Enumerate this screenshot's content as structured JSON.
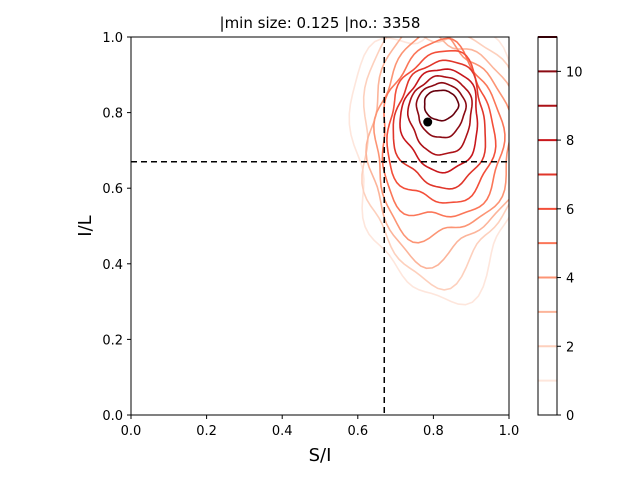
{
  "chart_data": {
    "type": "contour",
    "title": "|min size: 0.125 |no.: 3358",
    "xlabel": "S/I",
    "ylabel": "I/L",
    "xlim": [
      0.0,
      1.0
    ],
    "ylim": [
      0.0,
      1.0
    ],
    "x_ticks": [
      "0.0",
      "0.2",
      "0.4",
      "0.6",
      "0.8",
      "1.0"
    ],
    "y_ticks": [
      "0.0",
      "0.2",
      "0.4",
      "0.6",
      "0.8",
      "1.0"
    ],
    "vline_x": 0.67,
    "hline_y": 0.67,
    "marker_point": {
      "x": 0.785,
      "y": 0.775
    },
    "density_center": {
      "x": 0.82,
      "y": 0.82
    },
    "contour_levels": [
      1,
      2,
      3,
      4,
      5,
      6,
      7,
      8,
      9,
      10,
      11
    ],
    "colormap": "Reds",
    "level_colors": [
      "#fee6dc",
      "#fdd0bd",
      "#fcb49a",
      "#fc9474",
      "#fb7658",
      "#f34f3a",
      "#e0362a",
      "#c8171c",
      "#ac1117",
      "#8b0a13",
      "#67000d"
    ],
    "colorbar_ticks": [
      "0",
      "2",
      "4",
      "6",
      "8",
      "10"
    ],
    "colorbar_range": [
      0,
      11
    ],
    "grid": false
  }
}
